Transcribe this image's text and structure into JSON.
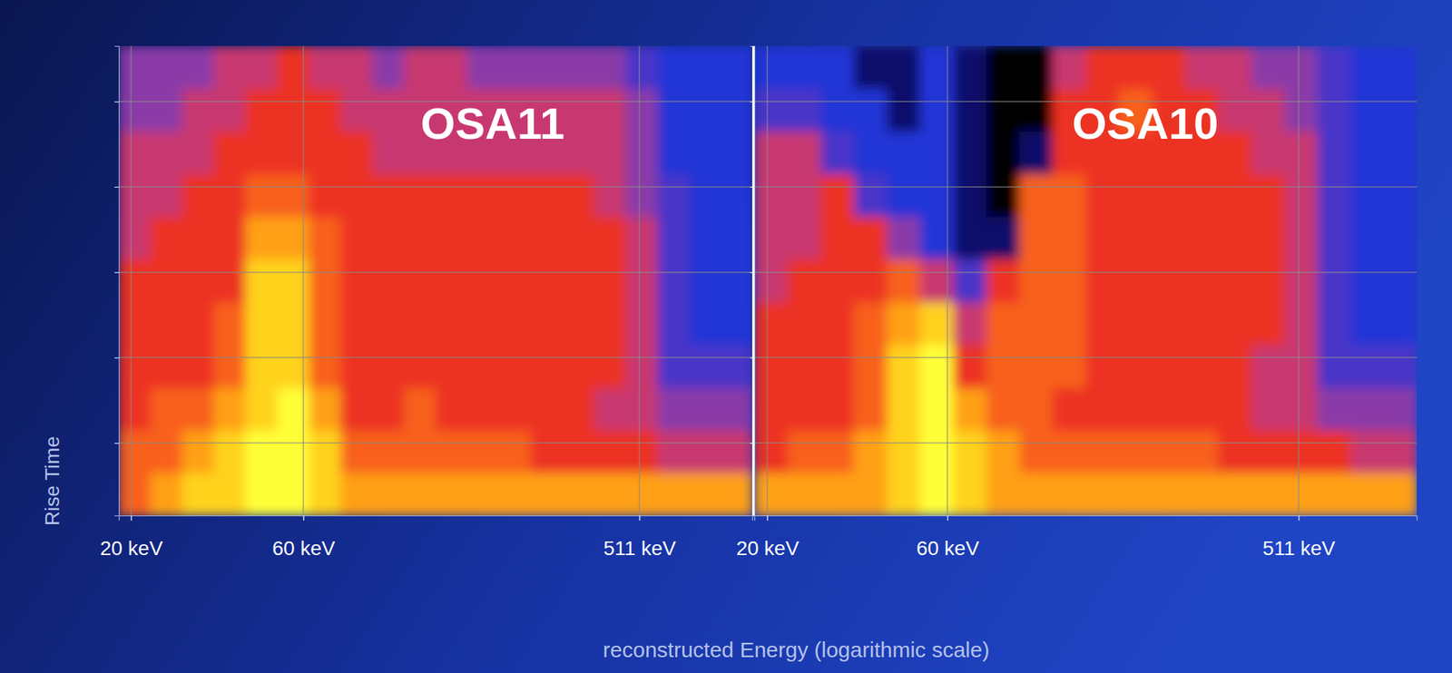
{
  "chart_data": {
    "type": "heatmap",
    "xlabel": "reconstructed Energy (logarithmic scale)",
    "ylabel": "Rise Time",
    "log": "x",
    "grid": true,
    "tick_labels": "x",
    "xlim": [
      18.5,
      1050
    ],
    "ylim": [
      0,
      11
    ],
    "xticks": [
      {
        "value": 20,
        "label": "20 keV"
      },
      {
        "value": 60,
        "label": "60 keV"
      },
      {
        "value": 511,
        "label": "511 keV"
      }
    ],
    "yticks": [
      1.7,
      3.7,
      5.7,
      7.7,
      9.7
    ],
    "zlim": [
      0,
      10
    ],
    "x": [
      18.5,
      22.6,
      27.7,
      33.9,
      41.5,
      50.8,
      62.2,
      76.1,
      93.1,
      113.9,
      139.4,
      170.6,
      208.8,
      255.5,
      312.7,
      382.7,
      468.4,
      573.2,
      701.5,
      858.4,
      1050
    ],
    "y": [
      0,
      1,
      2,
      3,
      4,
      5,
      6,
      7,
      8,
      9,
      10,
      11
    ],
    "panels": [
      {
        "title": "OSA11",
        "values": [
          [
            7,
            8,
            9,
            9,
            10,
            10,
            9,
            8,
            8,
            8,
            8,
            8,
            8,
            8,
            8,
            8,
            8,
            8,
            8,
            8
          ],
          [
            7,
            7,
            8,
            9,
            10,
            10,
            9,
            7,
            7,
            7,
            7,
            7,
            7,
            6,
            6,
            6,
            6,
            5,
            5,
            5
          ],
          [
            6,
            7,
            7,
            8,
            9,
            10,
            8,
            6,
            6,
            7,
            6,
            6,
            6,
            6,
            6,
            5,
            5,
            4,
            4,
            4
          ],
          [
            6,
            6,
            6,
            7,
            9,
            9,
            7,
            6,
            6,
            6,
            6,
            6,
            6,
            6,
            6,
            6,
            5,
            3,
            3,
            3
          ],
          [
            6,
            6,
            6,
            7,
            9,
            9,
            7,
            6,
            6,
            6,
            6,
            6,
            6,
            6,
            6,
            6,
            5,
            3,
            2,
            2
          ],
          [
            6,
            6,
            6,
            6,
            9,
            9,
            7,
            6,
            6,
            6,
            6,
            6,
            6,
            6,
            6,
            6,
            5,
            3,
            2,
            2
          ],
          [
            5,
            6,
            6,
            6,
            8,
            8,
            7,
            6,
            6,
            6,
            6,
            6,
            6,
            6,
            6,
            6,
            5,
            3,
            2,
            2
          ],
          [
            5,
            5,
            6,
            6,
            7,
            7,
            6,
            6,
            6,
            6,
            6,
            6,
            6,
            6,
            6,
            5,
            4,
            3,
            2,
            2
          ],
          [
            5,
            5,
            5,
            6,
            6,
            6,
            6,
            6,
            5,
            5,
            5,
            5,
            5,
            5,
            5,
            5,
            4,
            2,
            2,
            2
          ],
          [
            4,
            4,
            5,
            5,
            6,
            6,
            6,
            5,
            5,
            5,
            5,
            5,
            5,
            5,
            5,
            5,
            4,
            2,
            2,
            2
          ],
          [
            4,
            4,
            4,
            5,
            5,
            6,
            5,
            5,
            4,
            5,
            5,
            4,
            4,
            4,
            4,
            4,
            3,
            2,
            2,
            2
          ]
        ]
      },
      {
        "title": "OSA10",
        "values": [
          [
            8,
            8,
            8,
            8,
            9,
            10,
            9,
            8,
            8,
            8,
            8,
            8,
            8,
            8,
            8,
            8,
            8,
            8,
            8,
            8
          ],
          [
            6,
            7,
            7,
            8,
            9,
            10,
            9,
            8,
            7,
            7,
            7,
            7,
            7,
            7,
            6,
            6,
            6,
            6,
            5,
            5
          ],
          [
            6,
            6,
            6,
            7,
            9,
            10,
            8,
            7,
            7,
            6,
            6,
            6,
            6,
            6,
            6,
            5,
            5,
            4,
            4,
            4
          ],
          [
            6,
            6,
            6,
            7,
            9,
            10,
            6,
            7,
            7,
            7,
            6,
            6,
            6,
            6,
            6,
            5,
            5,
            3,
            3,
            3
          ],
          [
            6,
            6,
            6,
            7,
            8,
            9,
            5,
            7,
            7,
            7,
            6,
            6,
            6,
            6,
            6,
            6,
            5,
            3,
            2,
            2
          ],
          [
            5,
            6,
            6,
            6,
            7,
            5,
            3,
            6,
            7,
            7,
            6,
            6,
            6,
            6,
            6,
            6,
            5,
            3,
            2,
            2
          ],
          [
            5,
            5,
            6,
            6,
            4,
            2,
            1,
            1,
            7,
            7,
            6,
            6,
            6,
            6,
            6,
            6,
            5,
            3,
            2,
            2
          ],
          [
            5,
            5,
            6,
            3,
            2,
            2,
            1,
            0,
            7,
            7,
            6,
            6,
            6,
            6,
            6,
            6,
            5,
            3,
            2,
            2
          ],
          [
            5,
            5,
            3,
            2,
            2,
            2,
            1,
            0,
            1,
            6,
            6,
            6,
            6,
            6,
            6,
            5,
            5,
            3,
            2,
            2
          ],
          [
            3,
            3,
            2,
            2,
            1,
            2,
            1,
            0,
            0,
            6,
            6,
            7,
            6,
            6,
            5,
            5,
            4,
            3,
            2,
            2
          ],
          [
            2,
            2,
            2,
            1,
            1,
            2,
            1,
            0,
            0,
            5,
            6,
            6,
            6,
            5,
            5,
            4,
            4,
            3,
            2,
            2
          ]
        ]
      }
    ]
  }
}
